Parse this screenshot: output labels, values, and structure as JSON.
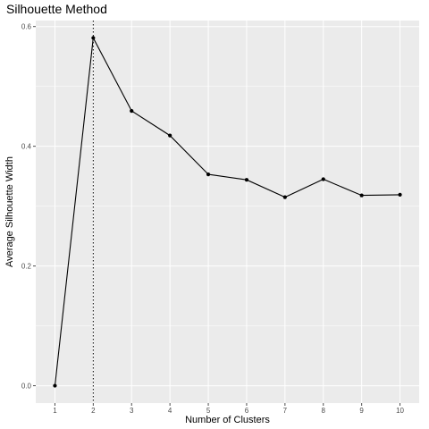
{
  "chart_data": {
    "type": "line",
    "title": "Silhouette Method",
    "xlabel": "Number of Clusters",
    "ylabel": "Average Silhouette Width",
    "x": [
      1,
      2,
      3,
      4,
      5,
      6,
      7,
      8,
      9,
      10
    ],
    "xticks": [
      "1",
      "2",
      "3",
      "4",
      "5",
      "6",
      "7",
      "8",
      "9",
      "10"
    ],
    "yticks": [
      0.0,
      0.2,
      0.4,
      0.6
    ],
    "ytick_labels": [
      "0.0",
      "0.2",
      "0.4",
      "0.6"
    ],
    "series": [
      {
        "values": [
          0.0,
          0.581,
          0.459,
          0.418,
          0.353,
          0.344,
          0.315,
          0.345,
          0.318,
          0.319
        ]
      }
    ],
    "xlim": [
      0.5,
      10.5
    ],
    "ylim": [
      -0.029,
      0.61
    ],
    "optimal_k": 2,
    "grid": true,
    "colors": {
      "panel": "#ebebeb",
      "grid": "#ffffff",
      "line": "#000000",
      "tick": "#4d4d4d"
    }
  }
}
